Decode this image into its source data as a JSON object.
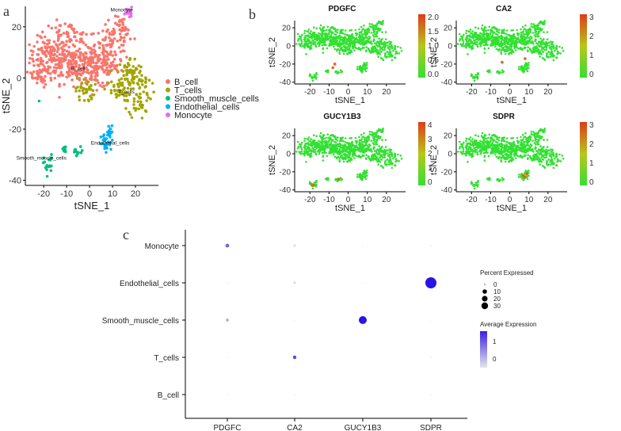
{
  "panels": {
    "a": "a",
    "b": "b",
    "c": "c"
  },
  "chart_data": [
    {
      "id": "tsne_clusters",
      "type": "scatter",
      "xlabel": "tSNE_1",
      "ylabel": "tSNE_2",
      "xlim": [
        -28,
        30
      ],
      "ylim": [
        -42,
        28
      ],
      "xticks": [
        -20,
        -10,
        0,
        10,
        20
      ],
      "yticks": [
        -40,
        -20,
        0,
        20
      ],
      "legend_position": "right",
      "series": [
        {
          "name": "B_cell",
          "color": "#F8766D",
          "label_pos": [
            -5,
            3
          ],
          "label": "B_cell"
        },
        {
          "name": "T_cells",
          "color": "#A3A500",
          "label_pos": [
            16,
            -6
          ],
          "label": "T_cells"
        },
        {
          "name": "Smooth_muscle_cells",
          "color": "#00BF7D",
          "label_pos": [
            -21,
            -32
          ],
          "label": "Smooth_muscle_cells"
        },
        {
          "name": "Endothelial_cells",
          "color": "#00B0F6",
          "label_pos": [
            9,
            -26
          ],
          "label": "Endothelial_cells"
        },
        {
          "name": "Monocyte",
          "color": "#E76BF3",
          "label_pos": [
            14,
            26
          ],
          "label": "Monocyte"
        }
      ]
    },
    {
      "id": "feature_plots",
      "type": "scatter",
      "xlabel": "tSNE_1",
      "ylabel": "tSNE_2",
      "xticks": [
        -20,
        -10,
        0,
        10,
        20
      ],
      "yticks": [
        -40,
        -20,
        0,
        20
      ],
      "features": [
        {
          "gene": "PDGFC",
          "colorbar_ticks": [
            "2.0",
            "1.5",
            "1.0",
            "0.5",
            "0.0"
          ]
        },
        {
          "gene": "CA2",
          "colorbar_ticks": [
            "3",
            "2",
            "1",
            "0"
          ]
        },
        {
          "gene": "GUCY1B3",
          "colorbar_ticks": [
            "4",
            "3",
            "2",
            "1",
            "0"
          ]
        },
        {
          "gene": "SDPR",
          "colorbar_ticks": [
            "3",
            "2",
            "1",
            "0"
          ]
        }
      ]
    },
    {
      "id": "dot_plot",
      "type": "scatter",
      "genes": [
        "PDGFC",
        "CA2",
        "GUCY1B3",
        "SDPR"
      ],
      "cell_types": [
        "Monocyte",
        "Endothelial_cells",
        "Smooth_muscle_cells",
        "T_cells",
        "B_cell"
      ],
      "percent_expressed": [
        [
          2,
          0.5,
          0,
          0
        ],
        [
          0,
          0.5,
          0,
          34
        ],
        [
          0.8,
          0,
          15,
          0
        ],
        [
          0,
          1.5,
          0,
          0
        ],
        [
          0,
          0,
          0,
          0
        ]
      ],
      "average_expression": [
        [
          1.2,
          0,
          0,
          0
        ],
        [
          0,
          0,
          0,
          2
        ],
        [
          0.5,
          0,
          2,
          0
        ],
        [
          0,
          1.5,
          0,
          0
        ],
        [
          0,
          0,
          0,
          0
        ]
      ],
      "legend": {
        "size_title": "Percent Expressed",
        "size_values": [
          "0",
          "10",
          "20",
          "30"
        ],
        "color_title": "Average Expression",
        "color_ticks": [
          "1",
          "0"
        ]
      }
    }
  ]
}
